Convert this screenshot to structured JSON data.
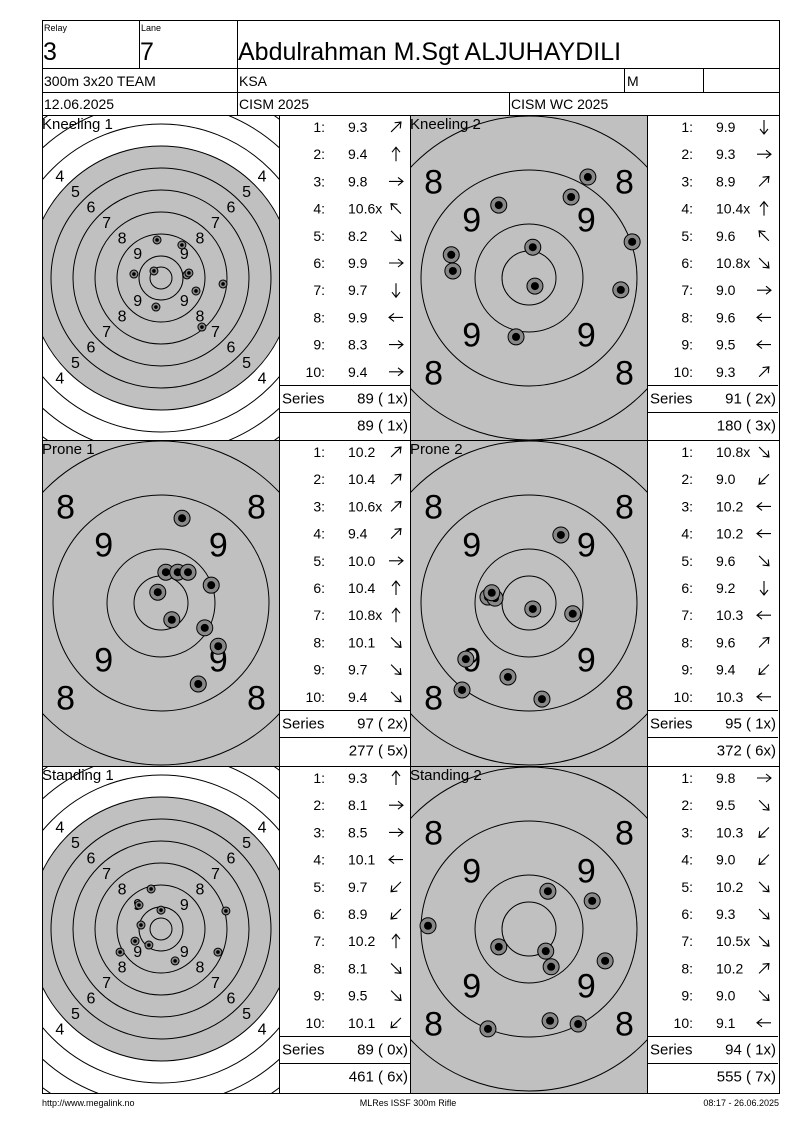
{
  "header": {
    "relay_label": "Relay",
    "relay": "3",
    "lane_label": "Lane",
    "lane": "7",
    "name": "Abdulrahman M.Sgt ALJUHAYDILI",
    "event": "300m 3x20 TEAM",
    "nation": "KSA",
    "gender": "M",
    "date": "12.06.2025",
    "competition": "CISM 2025",
    "match": "CISM WC 2025"
  },
  "series": [
    {
      "title": "Kneeling 1",
      "view": "full",
      "ring_labels": [
        4,
        5,
        6,
        7,
        8,
        9
      ],
      "shots": [
        {
          "no": "1:",
          "score": "9.3",
          "arrow": "ne"
        },
        {
          "no": "2:",
          "score": "9.4",
          "arrow": "n"
        },
        {
          "no": "3:",
          "score": "9.8",
          "arrow": "e"
        },
        {
          "no": "4:",
          "score": "10.6x",
          "arrow": "nw"
        },
        {
          "no": "5:",
          "score": "8.2",
          "arrow": "se"
        },
        {
          "no": "6:",
          "score": "9.9",
          "arrow": "e"
        },
        {
          "no": "7:",
          "score": "9.7",
          "arrow": "s"
        },
        {
          "no": "8:",
          "score": "9.9",
          "arrow": "w"
        },
        {
          "no": "9:",
          "score": "8.3",
          "arrow": "e"
        },
        {
          "no": "10:",
          "score": "9.4",
          "arrow": "e"
        }
      ],
      "holes": [
        [
          -0.18,
          -1.73
        ],
        [
          0.95,
          -1.5
        ],
        [
          -1.23,
          -0.18
        ],
        [
          -0.32,
          -0.32
        ],
        [
          1.18,
          -0.14
        ],
        [
          1.27,
          -0.23
        ],
        [
          1.59,
          0.59
        ],
        [
          2.82,
          0.27
        ],
        [
          -0.23,
          1.32
        ],
        [
          1.86,
          2.23
        ]
      ],
      "series_label": "Series",
      "series_total": "89 ( 1x)",
      "running_total": "89 ( 1x)"
    },
    {
      "title": "Kneeling 2",
      "view": "zoom",
      "ring_labels": [
        8,
        9
      ],
      "shots": [
        {
          "no": "1:",
          "score": "9.9",
          "arrow": "s"
        },
        {
          "no": "2:",
          "score": "9.3",
          "arrow": "e"
        },
        {
          "no": "3:",
          "score": "8.9",
          "arrow": "ne"
        },
        {
          "no": "4:",
          "score": "10.4x",
          "arrow": "n"
        },
        {
          "no": "5:",
          "score": "9.6",
          "arrow": "nw"
        },
        {
          "no": "6:",
          "score": "10.8x",
          "arrow": "se"
        },
        {
          "no": "7:",
          "score": "9.0",
          "arrow": "e"
        },
        {
          "no": "8:",
          "score": "9.6",
          "arrow": "w"
        },
        {
          "no": "9:",
          "score": "9.5",
          "arrow": "w"
        },
        {
          "no": "10:",
          "score": "9.3",
          "arrow": "ne"
        }
      ],
      "holes": [
        [
          1.09,
          -1.87
        ],
        [
          -0.56,
          -1.35
        ],
        [
          0.78,
          -1.5
        ],
        [
          0.07,
          -0.57
        ],
        [
          1.91,
          -0.67
        ],
        [
          -1.44,
          -0.43
        ],
        [
          -1.41,
          -0.13
        ],
        [
          0.11,
          0.15
        ],
        [
          1.7,
          0.22
        ],
        [
          -0.24,
          1.09
        ]
      ],
      "series_label": "Series",
      "series_total": "91 ( 2x)",
      "running_total": "180 ( 3x)"
    },
    {
      "title": "Prone 1",
      "view": "zoom",
      "ring_labels": [
        8,
        9
      ],
      "shots": [
        {
          "no": "1:",
          "score": "10.2",
          "arrow": "ne"
        },
        {
          "no": "2:",
          "score": "10.4",
          "arrow": "ne"
        },
        {
          "no": "3:",
          "score": "10.6x",
          "arrow": "ne"
        },
        {
          "no": "4:",
          "score": "9.4",
          "arrow": "ne"
        },
        {
          "no": "5:",
          "score": "10.0",
          "arrow": "e"
        },
        {
          "no": "6:",
          "score": "10.4",
          "arrow": "n"
        },
        {
          "no": "7:",
          "score": "10.8x",
          "arrow": "n"
        },
        {
          "no": "8:",
          "score": "10.1",
          "arrow": "se"
        },
        {
          "no": "9:",
          "score": "9.7",
          "arrow": "se"
        },
        {
          "no": "10:",
          "score": "9.4",
          "arrow": "se"
        }
      ],
      "holes": [
        [
          0.39,
          -1.57
        ],
        [
          0.09,
          -0.57
        ],
        [
          0.31,
          -0.57
        ],
        [
          0.5,
          -0.57
        ],
        [
          0.93,
          -0.33
        ],
        [
          -0.06,
          -0.2
        ],
        [
          0.2,
          0.31
        ],
        [
          0.81,
          0.46
        ],
        [
          1.06,
          0.8
        ],
        [
          0.69,
          1.5
        ]
      ],
      "series_label": "Series",
      "series_total": "97 ( 2x)",
      "running_total": "277 ( 5x)"
    },
    {
      "title": "Prone 2",
      "view": "zoom",
      "ring_labels": [
        8,
        9
      ],
      "shots": [
        {
          "no": "1:",
          "score": "10.8x",
          "arrow": "se"
        },
        {
          "no": "2:",
          "score": "9.0",
          "arrow": "sw"
        },
        {
          "no": "3:",
          "score": "10.2",
          "arrow": "w"
        },
        {
          "no": "4:",
          "score": "10.2",
          "arrow": "w"
        },
        {
          "no": "5:",
          "score": "9.6",
          "arrow": "se"
        },
        {
          "no": "6:",
          "score": "9.2",
          "arrow": "s"
        },
        {
          "no": "7:",
          "score": "10.3",
          "arrow": "w"
        },
        {
          "no": "8:",
          "score": "9.6",
          "arrow": "ne"
        },
        {
          "no": "9:",
          "score": "9.4",
          "arrow": "sw"
        },
        {
          "no": "10:",
          "score": "10.3",
          "arrow": "w"
        }
      ],
      "holes": [
        [
          0.59,
          -1.26
        ],
        [
          -0.76,
          -0.11
        ],
        [
          -0.63,
          -0.09
        ],
        [
          0.07,
          0.11
        ],
        [
          0.81,
          0.2
        ],
        [
          -1.17,
          1.04
        ],
        [
          -1.24,
          1.61
        ],
        [
          -0.39,
          1.37
        ],
        [
          0.24,
          1.78
        ],
        [
          -0.69,
          -0.19
        ]
      ],
      "series_label": "Series",
      "series_total": "95 ( 1x)",
      "running_total": "372 ( 6x)"
    },
    {
      "title": "Standing 1",
      "view": "full",
      "ring_labels": [
        4,
        5,
        6,
        7,
        8,
        9
      ],
      "shots": [
        {
          "no": "1:",
          "score": "9.3",
          "arrow": "n"
        },
        {
          "no": "2:",
          "score": "8.1",
          "arrow": "e"
        },
        {
          "no": "3:",
          "score": "8.5",
          "arrow": "e"
        },
        {
          "no": "4:",
          "score": "10.1",
          "arrow": "w"
        },
        {
          "no": "5:",
          "score": "9.7",
          "arrow": "sw"
        },
        {
          "no": "6:",
          "score": "8.9",
          "arrow": "sw"
        },
        {
          "no": "7:",
          "score": "10.2",
          "arrow": "n"
        },
        {
          "no": "8:",
          "score": "8.1",
          "arrow": "se"
        },
        {
          "no": "9:",
          "score": "9.5",
          "arrow": "se"
        },
        {
          "no": "10:",
          "score": "10.1",
          "arrow": "sw"
        }
      ],
      "holes": [
        [
          -0.45,
          -1.82
        ],
        [
          2.95,
          -0.82
        ],
        [
          0,
          -0.86
        ],
        [
          -1,
          -1.09
        ],
        [
          -0.91,
          -0.18
        ],
        [
          -1.18,
          0.55
        ],
        [
          -0.55,
          0.73
        ],
        [
          -1.86,
          1.05
        ],
        [
          0.64,
          1.45
        ],
        [
          2.59,
          1.05
        ]
      ],
      "series_label": "Series",
      "series_total": "89 ( 0x)",
      "running_total": "461 ( 6x)"
    },
    {
      "title": "Standing 2",
      "view": "zoom",
      "ring_labels": [
        8,
        9
      ],
      "shots": [
        {
          "no": "1:",
          "score": "9.8",
          "arrow": "e"
        },
        {
          "no": "2:",
          "score": "9.5",
          "arrow": "se"
        },
        {
          "no": "3:",
          "score": "10.3",
          "arrow": "sw"
        },
        {
          "no": "4:",
          "score": "9.0",
          "arrow": "sw"
        },
        {
          "no": "5:",
          "score": "10.2",
          "arrow": "se"
        },
        {
          "no": "6:",
          "score": "9.3",
          "arrow": "se"
        },
        {
          "no": "7:",
          "score": "10.5x",
          "arrow": "se"
        },
        {
          "no": "8:",
          "score": "10.2",
          "arrow": "ne"
        },
        {
          "no": "9:",
          "score": "9.0",
          "arrow": "se"
        },
        {
          "no": "10:",
          "score": "9.1",
          "arrow": "w"
        }
      ],
      "holes": [
        [
          0.35,
          -0.7
        ],
        [
          1.17,
          -0.52
        ],
        [
          -1.87,
          -0.06
        ],
        [
          -0.56,
          0.33
        ],
        [
          0.31,
          0.41
        ],
        [
          0.41,
          0.7
        ],
        [
          1.41,
          0.59
        ],
        [
          -0.76,
          1.85
        ],
        [
          0.39,
          1.7
        ],
        [
          0.91,
          1.76
        ]
      ],
      "series_label": "Series",
      "series_total": "94 ( 1x)",
      "running_total": "555 ( 7x)"
    }
  ],
  "footer": {
    "left": "http://www.megalink.no",
    "center": "MLRes ISSF 300m Rifle",
    "right": "08:17 - 26.06.2025"
  }
}
